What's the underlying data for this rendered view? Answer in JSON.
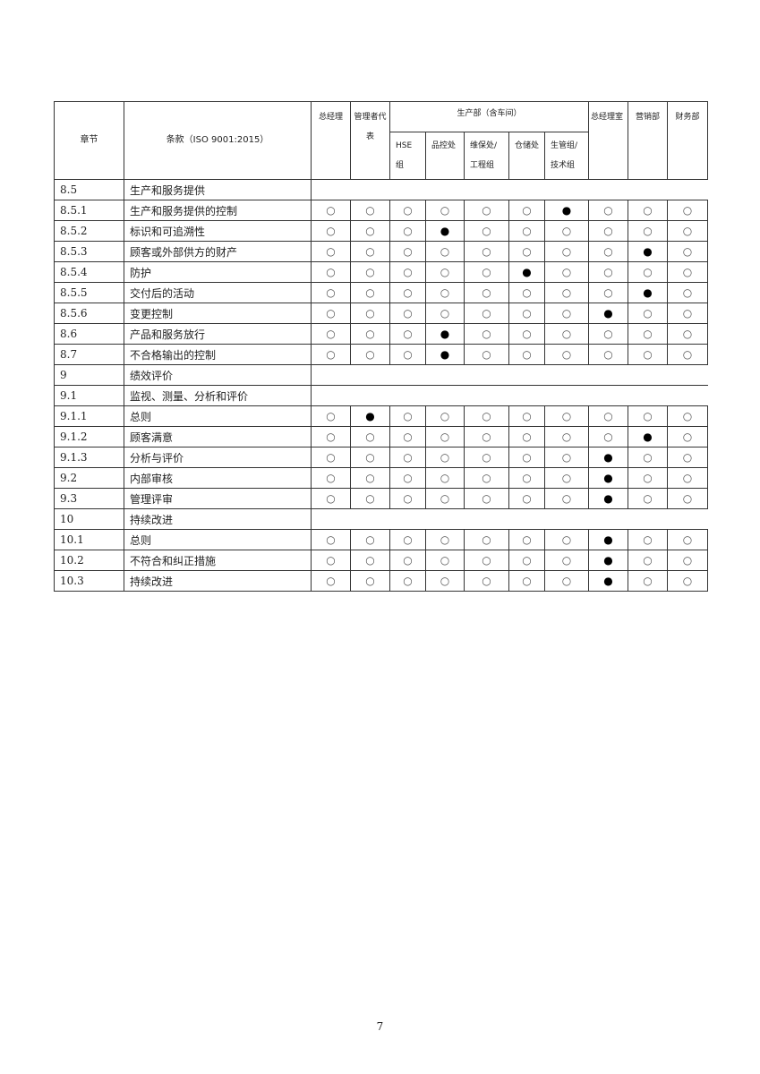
{
  "header": {
    "chapter": "章节",
    "clause": "条款（ISO 9001:2015）",
    "gm": "总经理",
    "mr": "管理者代表",
    "production": "生产部（含车间）",
    "hse": "HSE组",
    "qc": "品控处",
    "maint": "维保处/工程组",
    "store": "仓储处",
    "plan": "生管组/技术组",
    "gmo": "总经理室",
    "sales": "营销部",
    "finance": "财务部"
  },
  "symbols": {
    "responsible": "●",
    "related": "○"
  },
  "rows": [
    {
      "no": "8.5",
      "title": "生产和服务提供",
      "group": true
    },
    {
      "no": "8.5.1",
      "title": "生产和服务提供的控制",
      "lead": 6
    },
    {
      "no": "8.5.2",
      "title": "标识和可追溯性",
      "lead": 3
    },
    {
      "no": "8.5.3",
      "title": "顾客或外部供方的财产",
      "lead": 8
    },
    {
      "no": "8.5.4",
      "title": "防护",
      "lead": 5
    },
    {
      "no": "8.5.5",
      "title": "交付后的活动",
      "lead": 8
    },
    {
      "no": "8.5.6",
      "title": "变更控制",
      "lead": 7
    },
    {
      "no": "8.6",
      "title": "产品和服务放行",
      "lead": 3
    },
    {
      "no": "8.7",
      "title": "不合格输出的控制",
      "lead": 3
    },
    {
      "no": "9",
      "title": "绩效评价",
      "group": true
    },
    {
      "no": "9.1",
      "title": "监视、测量、分析和评价",
      "group": true
    },
    {
      "no": "9.1.1",
      "title": "总则",
      "lead": 1
    },
    {
      "no": "9.1.2",
      "title": "顾客满意",
      "lead": 8
    },
    {
      "no": "9.1.3",
      "title": "分析与评价",
      "lead": 7
    },
    {
      "no": "9.2",
      "title": "内部审核",
      "lead": 7
    },
    {
      "no": "9.3",
      "title": "管理评审",
      "lead": 7
    },
    {
      "no": "10",
      "title": "持续改进",
      "group": true
    },
    {
      "no": "10.1",
      "title": "总则",
      "lead": 7
    },
    {
      "no": "10.2",
      "title": "不符合和纠正措施",
      "lead": 7
    },
    {
      "no": "10.3",
      "title": "持续改进",
      "lead": 7
    }
  ],
  "page_number": "7"
}
